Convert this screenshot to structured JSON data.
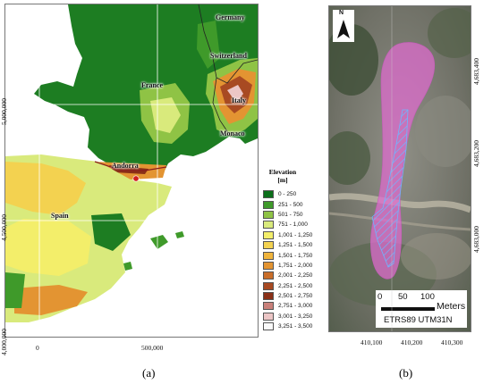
{
  "panel_a": {
    "caption": "(a)",
    "x_ticks": [
      "0",
      "500,000"
    ],
    "y_ticks": [
      "5,000,000",
      "4,500,000",
      "4,000,000"
    ],
    "countries": {
      "germany": "Germany",
      "switzerland": "Switzerland",
      "france": "France",
      "italy": "Italy",
      "monaco": "Monaco",
      "andorra": "Andorra",
      "spain": "Spain"
    },
    "legend": {
      "title_line1": "Elevation",
      "title_line2": "[m]",
      "classes": [
        {
          "label": "0 - 250",
          "color": "#0b6f1a"
        },
        {
          "label": "251 - 500",
          "color": "#3f9a2a"
        },
        {
          "label": "501 - 750",
          "color": "#8fc345"
        },
        {
          "label": "751 - 1,000",
          "color": "#d9ea7c"
        },
        {
          "label": "1,001 - 1,250",
          "color": "#f3ee6a"
        },
        {
          "label": "1,251 - 1,500",
          "color": "#f3d250"
        },
        {
          "label": "1,501 - 1,750",
          "color": "#f0b43c"
        },
        {
          "label": "1,751 - 2,000",
          "color": "#e39432"
        },
        {
          "label": "2,001 - 2,250",
          "color": "#c96e2a"
        },
        {
          "label": "2,251 - 2,500",
          "color": "#a84a22"
        },
        {
          "label": "2,501 - 2,750",
          "color": "#8a3018"
        },
        {
          "label": "2,751 - 3,000",
          "color": "#c9807a"
        },
        {
          "label": "3,001 - 3,250",
          "color": "#ecc6c6"
        },
        {
          "label": "3,251 - 3,500",
          "color": "#fafafa"
        }
      ]
    }
  },
  "panel_b": {
    "caption": "(b)",
    "north_label": "N",
    "x_ticks": [
      "410,100",
      "410,200",
      "410,300"
    ],
    "y_ticks": [
      "4,683,400",
      "4,683,200",
      "4,683,000"
    ],
    "scale_ticks": [
      "0",
      "50",
      "100"
    ],
    "scale_unit": "Meters",
    "crs_label": "ETRS89 UTM31N",
    "colors": {
      "zone_fill": "#e06bd0",
      "hatch": "#6fb6ff"
    }
  }
}
